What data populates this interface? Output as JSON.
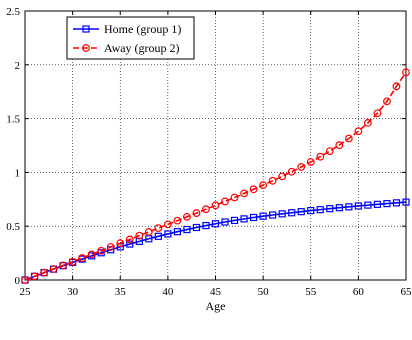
{
  "chart_data": {
    "type": "line",
    "title": "",
    "xlabel": "Age",
    "ylabel": "",
    "xlim": [
      25,
      65
    ],
    "ylim": [
      0,
      2.5
    ],
    "xticks": [
      25,
      30,
      35,
      40,
      45,
      50,
      55,
      60,
      65
    ],
    "yticks": [
      0,
      0.5,
      1,
      1.5,
      2,
      2.5
    ],
    "xtick_labels": [
      "25",
      "30",
      "35",
      "40",
      "45",
      "50",
      "55",
      "60",
      "65"
    ],
    "ytick_labels": [
      "0",
      "0.5",
      "1",
      "1.5",
      "2",
      "2.5"
    ],
    "grid": true,
    "legend_position": "top-left",
    "series": [
      {
        "name": "Home (group 1)",
        "color": "#0000ff",
        "marker": "square",
        "line": "solid",
        "x": [
          25,
          26,
          27,
          28,
          29,
          30,
          31,
          32,
          33,
          34,
          35,
          36,
          37,
          38,
          39,
          40,
          41,
          42,
          43,
          44,
          45,
          46,
          47,
          48,
          49,
          50,
          51,
          52,
          53,
          54,
          55,
          56,
          57,
          58,
          59,
          60,
          61,
          62,
          63,
          64,
          65
        ],
        "y": [
          0.0,
          0.034,
          0.068,
          0.101,
          0.133,
          0.164,
          0.194,
          0.224,
          0.253,
          0.281,
          0.308,
          0.334,
          0.359,
          0.383,
          0.406,
          0.428,
          0.449,
          0.469,
          0.488,
          0.506,
          0.523,
          0.539,
          0.554,
          0.568,
          0.581,
          0.593,
          0.604,
          0.615,
          0.625,
          0.635,
          0.645,
          0.654,
          0.663,
          0.672,
          0.68,
          0.688,
          0.696,
          0.703,
          0.71,
          0.717,
          0.724
        ]
      },
      {
        "name": "Away (group 2)",
        "color": "#ff0000",
        "marker": "circle",
        "line": "dashed",
        "x": [
          25,
          26,
          27,
          28,
          29,
          30,
          31,
          32,
          33,
          34,
          35,
          36,
          37,
          38,
          39,
          40,
          41,
          42,
          43,
          44,
          45,
          46,
          47,
          48,
          49,
          50,
          51,
          52,
          53,
          54,
          55,
          56,
          57,
          58,
          59,
          60,
          61,
          62,
          63,
          64,
          65
        ],
        "y": [
          0.0,
          0.034,
          0.068,
          0.102,
          0.136,
          0.17,
          0.204,
          0.238,
          0.272,
          0.307,
          0.342,
          0.377,
          0.412,
          0.447,
          0.482,
          0.517,
          0.552,
          0.587,
          0.622,
          0.658,
          0.694,
          0.73,
          0.767,
          0.805,
          0.843,
          0.882,
          0.922,
          0.963,
          1.006,
          1.05,
          1.097,
          1.146,
          1.198,
          1.254,
          1.315,
          1.383,
          1.46,
          1.55,
          1.66,
          1.8,
          1.93
        ]
      }
    ]
  }
}
